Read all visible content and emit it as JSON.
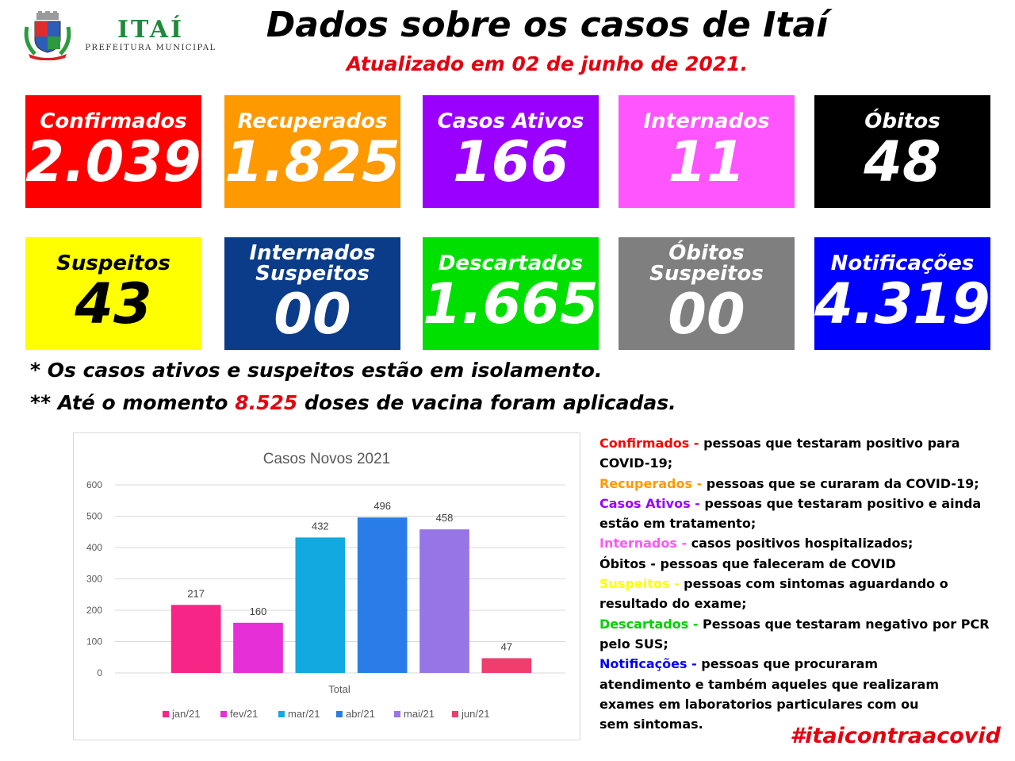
{
  "header": {
    "brand_name": "ITAÍ",
    "brand_sub": "PREFEITURA MUNICIPAL",
    "title": "Dados sobre os casos de Itaí",
    "subtitle": "Atualizado em 02 de junho de 2021."
  },
  "cards": [
    {
      "label": "Confirmados",
      "value": "2.039",
      "color": "#fe0000"
    },
    {
      "label": "Recuperados",
      "value": "1.825",
      "color": "#ff9900"
    },
    {
      "label": "Casos Ativos",
      "value": "166",
      "color": "#9900ff"
    },
    {
      "label": "Internados",
      "value": "11",
      "color": "#ff55ff"
    },
    {
      "label": "Óbitos",
      "value": "48",
      "color": "#000000"
    },
    {
      "label": "Suspeitos",
      "value": "43",
      "color": "#ffff00"
    },
    {
      "label": "Internados Suspeitos",
      "value": "00",
      "color": "#0b3c8a"
    },
    {
      "label": "Descartados",
      "value": "1.665",
      "color": "#00e000"
    },
    {
      "label": "Óbitos Suspeitos",
      "value": "00",
      "color": "#7f7f7f"
    },
    {
      "label": "Notificações",
      "value": "4.319",
      "color": "#0000ff"
    }
  ],
  "notes": {
    "line1": "* Os casos ativos e suspeitos estão em isolamento.",
    "line2_prefix": "** Até o momento ",
    "line2_highlight": "8.525",
    "line2_suffix": " doses de vacina foram aplicadas."
  },
  "chart_data": {
    "type": "bar",
    "title": "Casos Novos 2021",
    "xlabel": "Total",
    "ylabel": "",
    "ylim": [
      0,
      600
    ],
    "yticks": [
      0,
      100,
      200,
      300,
      400,
      500,
      600
    ],
    "grid": true,
    "legend_position": "bottom",
    "categories": [
      "Total"
    ],
    "series": [
      {
        "name": "jan/21",
        "values": [
          217
        ],
        "color": "#f72585"
      },
      {
        "name": "fev/21",
        "values": [
          160
        ],
        "color": "#e62fd6"
      },
      {
        "name": "mar/21",
        "values": [
          432
        ],
        "color": "#11a9df"
      },
      {
        "name": "abr/21",
        "values": [
          496
        ],
        "color": "#2a7de8"
      },
      {
        "name": "mai/21",
        "values": [
          458
        ],
        "color": "#9775e6"
      },
      {
        "name": "jun/21",
        "values": [
          47
        ],
        "color": "#ef3e6e"
      }
    ]
  },
  "definitions": [
    {
      "term": "Confirmados - ",
      "term_color": "#fe0000",
      "lines": [
        "pessoas que testaram positivo para",
        "COVID-19;"
      ]
    },
    {
      "term": "Recuperados - ",
      "term_color": "#ff9900",
      "lines": [
        "pessoas que se curaram da COVID-19;"
      ]
    },
    {
      "term": "Casos Ativos - ",
      "term_color": "#9900ff",
      "lines": [
        "pessoas que testaram positivo e ainda",
        "estão em tratamento;"
      ]
    },
    {
      "term": "Internados - ",
      "term_color": "#ff55ff",
      "lines": [
        " casos positivos hospitalizados;"
      ]
    },
    {
      "term": "Óbitos - ",
      "term_color": "#000000",
      "lines": [
        "pessoas que faleceram de COVID"
      ]
    },
    {
      "term": "Suspeitos - ",
      "term_color": "#ffff00",
      "lines": [
        "pessoas com sintomas aguardando o",
        "resultado do exame;"
      ]
    },
    {
      "term": "Descartados - ",
      "term_color": "#00d000",
      "lines": [
        "Pessoas que testaram negativo por PCR",
        "pelo SUS;"
      ]
    },
    {
      "term": "Notificações - ",
      "term_color": "#0000ff",
      "lines": [
        "pessoas que procuraram",
        "atendimento e também aqueles que realizaram",
        "exames em laboratorios particulares com ou",
        "sem sintomas."
      ]
    }
  ],
  "hashtag": "#itaicontraacovid"
}
